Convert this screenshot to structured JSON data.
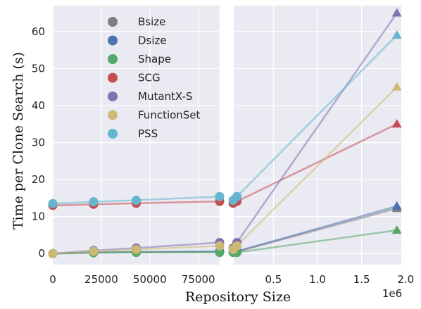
{
  "chart_data": {
    "type": "scatter",
    "xlabel": "Repository Size",
    "ylabel": "Time per Clone Search (s)",
    "x_offset_label": "1e6",
    "grid": true,
    "legend_placement": "top-left",
    "ylim": [
      -3,
      67
    ],
    "yticks": [
      0,
      10,
      20,
      30,
      40,
      50,
      60
    ],
    "ytick_labels": [
      "0",
      "10",
      "20",
      "30",
      "40",
      "50",
      "60"
    ],
    "panels": [
      {
        "xlim": [
          0,
          86000
        ],
        "xticks": [
          0,
          25000,
          50000,
          75000
        ],
        "xtick_labels": [
          "0",
          "25000",
          "50000",
          "75000"
        ]
      },
      {
        "xlim": [
          50000,
          1950000
        ],
        "xticks": [
          500000,
          1000000,
          1500000,
          2000000
        ],
        "xtick_labels": [
          "0.5",
          "1.0",
          "1.5",
          "2.0"
        ]
      }
    ],
    "series": [
      {
        "name": "Bsize",
        "color": "#7f7f7f",
        "marker": "circle",
        "points": [
          [
            0,
            0
          ],
          [
            21000,
            0.3
          ],
          [
            43000,
            0.4
          ],
          [
            86000,
            0.5
          ],
          [
            1900000,
            12.2
          ]
        ]
      },
      {
        "name": "Dsize",
        "color": "#4c72b0",
        "marker": "circle",
        "points": [
          [
            0,
            0
          ],
          [
            21000,
            0.3
          ],
          [
            43000,
            0.4
          ],
          [
            86000,
            0.6
          ],
          [
            1900000,
            12.8
          ]
        ]
      },
      {
        "name": "Shape",
        "color": "#55a868",
        "marker": "circle",
        "points": [
          [
            0,
            0
          ],
          [
            21000,
            0.2
          ],
          [
            43000,
            0.3
          ],
          [
            86000,
            0.3
          ],
          [
            1900000,
            6.3
          ]
        ]
      },
      {
        "name": "SCG",
        "color": "#c44e52",
        "marker": "circle",
        "points": [
          [
            0,
            13
          ],
          [
            21000,
            13.3
          ],
          [
            43000,
            13.6
          ],
          [
            86000,
            14.1
          ],
          [
            1900000,
            35
          ]
        ]
      },
      {
        "name": "MutantX-S",
        "color": "#8172b2",
        "marker": "circle",
        "points": [
          [
            0,
            0
          ],
          [
            21000,
            0.8
          ],
          [
            43000,
            1.5
          ],
          [
            86000,
            3
          ],
          [
            1900000,
            65
          ]
        ]
      },
      {
        "name": "FunctionSet",
        "color": "#ccb974",
        "marker": "circle",
        "points": [
          [
            0,
            0
          ],
          [
            21000,
            0.6
          ],
          [
            43000,
            1.1
          ],
          [
            86000,
            2.1
          ],
          [
            1900000,
            45
          ]
        ]
      },
      {
        "name": "PSS",
        "color": "#64b5cd",
        "marker": "circle",
        "points": [
          [
            0,
            13.5
          ],
          [
            21000,
            14
          ],
          [
            43000,
            14.4
          ],
          [
            86000,
            15.4
          ],
          [
            1900000,
            59
          ]
        ]
      }
    ]
  }
}
